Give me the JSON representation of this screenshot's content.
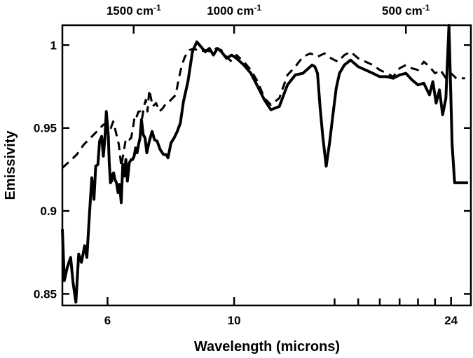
{
  "chart_data": {
    "type": "line",
    "xlabel": "Wavelength (microns)",
    "ylabel": "Emissivity",
    "x_scale": "log",
    "xlim": [
      5.0,
      26.0
    ],
    "ylim": [
      0.843,
      1.012
    ],
    "grid": false,
    "x_ticks": [
      {
        "value": 6,
        "label": "6"
      },
      {
        "value": 10,
        "label": "10"
      },
      {
        "value": 24,
        "label": "24"
      }
    ],
    "x_minor_ticks": [
      15,
      16.5,
      18,
      19.5,
      21,
      22.5
    ],
    "y_ticks": [
      {
        "value": 0.85,
        "label": "0.85"
      },
      {
        "value": 0.9,
        "label": "0.9"
      },
      {
        "value": 0.95,
        "label": "0.95"
      },
      {
        "value": 1.0,
        "label": "1"
      }
    ],
    "top_axis": {
      "unit": "cm-1",
      "ticks": [
        {
          "value": 1500,
          "label": "1500 cm",
          "sup": "-1"
        },
        {
          "value": 1000,
          "label": "1000 cm",
          "sup": "-1"
        },
        {
          "value": 500,
          "label": "500 cm",
          "sup": "-1"
        }
      ]
    },
    "series": [
      {
        "style": "solid",
        "x": [
          5.0,
          5.04,
          5.1,
          5.17,
          5.22,
          5.28,
          5.34,
          5.4,
          5.47,
          5.52,
          5.58,
          5.63,
          5.68,
          5.72,
          5.77,
          5.81,
          5.86,
          5.9,
          5.94,
          5.97,
          6.0,
          6.02,
          6.04,
          6.07,
          6.1,
          6.12,
          6.15,
          6.18,
          6.22,
          6.26,
          6.3,
          6.34,
          6.38,
          6.42,
          6.46,
          6.5,
          6.55,
          6.6,
          6.64,
          6.68,
          6.72,
          6.76,
          6.8,
          6.84,
          6.88,
          6.93,
          6.98,
          7.03,
          7.1,
          7.18,
          7.25,
          7.33,
          7.42,
          7.52,
          7.6,
          7.66,
          7.75,
          7.85,
          7.95,
          8.05,
          8.15,
          8.3,
          8.45,
          8.6,
          8.75,
          8.9,
          9.05,
          9.2,
          9.35,
          9.5,
          9.7,
          9.9,
          10.1,
          10.4,
          10.7,
          11.0,
          11.3,
          11.6,
          12.0,
          12.4,
          12.8,
          13.2,
          13.5,
          13.7,
          13.85,
          14.0,
          14.15,
          14.3,
          14.5,
          14.7,
          14.9,
          15.1,
          15.3,
          15.6,
          16.0,
          16.5,
          17.0,
          17.5,
          18.0,
          18.5,
          19.0,
          19.5,
          20.0,
          20.5,
          21.0,
          21.5,
          22.0,
          22.3,
          22.6,
          22.9,
          23.2,
          23.5,
          23.8,
          24.1,
          24.35,
          24.6,
          24.8,
          25.0,
          25.3,
          25.5,
          25.7
        ],
        "y": [
          0.889,
          0.858,
          0.866,
          0.872,
          0.857,
          0.845,
          0.874,
          0.869,
          0.879,
          0.872,
          0.899,
          0.92,
          0.907,
          0.927,
          0.928,
          0.942,
          0.945,
          0.933,
          0.945,
          0.96,
          0.951,
          0.945,
          0.93,
          0.917,
          0.918,
          0.922,
          0.923,
          0.919,
          0.917,
          0.911,
          0.916,
          0.905,
          0.928,
          0.921,
          0.931,
          0.918,
          0.929,
          0.931,
          0.931,
          0.933,
          0.938,
          0.935,
          0.94,
          0.944,
          0.955,
          0.946,
          0.944,
          0.935,
          0.942,
          0.948,
          0.943,
          0.942,
          0.937,
          0.934,
          0.934,
          0.932,
          0.941,
          0.944,
          0.948,
          0.953,
          0.966,
          0.978,
          0.996,
          1.002,
          0.999,
          0.996,
          0.998,
          0.994,
          0.998,
          0.996,
          0.992,
          0.994,
          0.992,
          0.988,
          0.983,
          0.975,
          0.967,
          0.961,
          0.963,
          0.976,
          0.982,
          0.983,
          0.986,
          0.988,
          0.987,
          0.983,
          0.962,
          0.945,
          0.927,
          0.941,
          0.958,
          0.974,
          0.983,
          0.988,
          0.991,
          0.987,
          0.985,
          0.983,
          0.981,
          0.981,
          0.98,
          0.982,
          0.983,
          0.979,
          0.976,
          0.977,
          0.97,
          0.978,
          0.965,
          0.973,
          0.958,
          0.968,
          1.012,
          0.94,
          0.917,
          0.917,
          0.917,
          0.917,
          0.917,
          0.917,
          0.917
        ]
      },
      {
        "style": "dashed",
        "x": [
          5.0,
          5.15,
          5.3,
          5.45,
          5.6,
          5.75,
          5.9,
          6.0,
          6.08,
          6.14,
          6.2,
          6.28,
          6.34,
          6.4,
          6.45,
          6.5,
          6.55,
          6.6,
          6.65,
          6.7,
          6.75,
          6.8,
          6.85,
          6.9,
          6.95,
          7.0,
          7.05,
          7.1,
          7.2,
          7.3,
          7.4,
          7.5,
          7.6,
          7.7,
          7.8,
          7.9,
          8.0,
          8.1,
          8.2,
          8.35,
          8.5,
          8.7,
          8.9,
          9.1,
          9.3,
          9.5,
          9.7,
          9.9,
          10.1,
          10.4,
          10.7,
          11.0,
          11.3,
          11.6,
          12.0,
          12.4,
          12.8,
          13.2,
          13.6,
          14.0,
          14.4,
          14.8,
          15.2,
          15.6,
          16.0,
          16.5,
          17.0,
          17.5,
          18.0,
          18.5,
          19.0,
          19.5,
          20.0,
          20.5,
          21.0,
          21.5,
          22.0,
          22.5,
          23.0,
          23.5,
          24.0,
          24.5,
          25.0,
          25.4
        ],
        "y": [
          0.926,
          0.93,
          0.934,
          0.94,
          0.944,
          0.948,
          0.952,
          0.953,
          0.95,
          0.954,
          0.948,
          0.94,
          0.927,
          0.935,
          0.942,
          0.944,
          0.943,
          0.944,
          0.95,
          0.958,
          0.957,
          0.96,
          0.96,
          0.956,
          0.963,
          0.967,
          0.96,
          0.973,
          0.963,
          0.965,
          0.96,
          0.962,
          0.965,
          0.966,
          0.968,
          0.97,
          0.98,
          0.988,
          0.993,
          0.997,
          0.998,
          0.996,
          0.997,
          0.996,
          0.998,
          0.997,
          0.993,
          0.99,
          0.994,
          0.99,
          0.985,
          0.978,
          0.968,
          0.964,
          0.968,
          0.982,
          0.987,
          0.993,
          0.995,
          0.993,
          0.995,
          0.992,
          0.99,
          0.994,
          0.996,
          0.992,
          0.99,
          0.988,
          0.985,
          0.983,
          0.981,
          0.986,
          0.988,
          0.986,
          0.985,
          0.99,
          0.987,
          0.983,
          0.985,
          0.98,
          0.983,
          0.98,
          0.98,
          0.98
        ]
      }
    ]
  }
}
